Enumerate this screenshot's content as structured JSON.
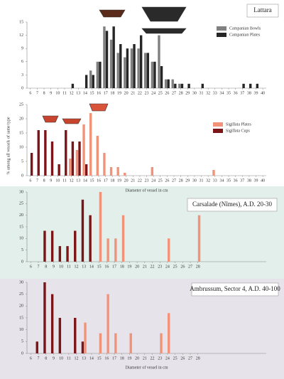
{
  "chart_data": [
    {
      "type": "bar",
      "title": "Lattara",
      "series": [
        {
          "name": "Campanian Bowls",
          "color": "#808080",
          "x": [
            15,
            16,
            17,
            18,
            19,
            20,
            21,
            22,
            23,
            24,
            25,
            26,
            27,
            28
          ],
          "values": [
            4,
            6,
            14,
            11,
            8,
            7,
            9,
            9,
            8,
            6,
            12,
            2,
            2,
            1
          ]
        },
        {
          "name": "Campanian Plates",
          "color": "#262626",
          "x": [
            12,
            14,
            15,
            16,
            17,
            18,
            19,
            20,
            21,
            22,
            23,
            24,
            25,
            26,
            27,
            28,
            29,
            31,
            37,
            38,
            39
          ],
          "values": [
            1,
            3,
            3,
            6,
            13,
            14,
            10,
            9,
            10,
            12,
            8,
            6,
            5,
            2,
            1,
            1,
            1,
            1,
            1,
            1,
            1
          ]
        }
      ],
      "xlim": [
        5.5,
        40.5
      ],
      "xticks": [
        6,
        7,
        8,
        9,
        10,
        11,
        12,
        13,
        14,
        15,
        16,
        17,
        18,
        19,
        20,
        21,
        22,
        23,
        24,
        25,
        26,
        27,
        28,
        29,
        30,
        31,
        32,
        33,
        34,
        35,
        36,
        37,
        38,
        39,
        40
      ],
      "ylim": [
        0,
        15
      ],
      "yticks": [
        0,
        3,
        6,
        9,
        12,
        15
      ]
    },
    {
      "type": "bar",
      "ylabel": "% among all vessels of same type",
      "xlabel": "Diameter of vessel in cm",
      "series": [
        {
          "name": "Sigillata Plates",
          "color": "#f29379",
          "x": [
            12,
            13,
            14,
            15,
            16,
            17,
            18,
            19,
            20,
            24,
            33
          ],
          "values": [
            6,
            9,
            18,
            22,
            14,
            8,
            3,
            3,
            1,
            3,
            2
          ]
        },
        {
          "name": "Sigillata Cups",
          "color": "#7b1518",
          "x": [
            6,
            7,
            8,
            9,
            10,
            11,
            12,
            13,
            14
          ],
          "values": [
            8,
            16,
            16,
            12,
            4,
            16,
            12,
            12,
            4
          ]
        }
      ],
      "xlim": [
        5.5,
        40.5
      ],
      "xticks": [
        6,
        7,
        8,
        9,
        10,
        11,
        12,
        13,
        14,
        15,
        16,
        17,
        18,
        19,
        20,
        21,
        22,
        23,
        24,
        25,
        26,
        27,
        28,
        29,
        30,
        31,
        32,
        33,
        34,
        35,
        36,
        37,
        38,
        39,
        40
      ],
      "ylim": [
        0,
        25
      ],
      "yticks": [
        0,
        5,
        10,
        15,
        20,
        25
      ]
    },
    {
      "type": "bar",
      "title": "Carsalade (Nîmes), A.D. 20-30",
      "series": [
        {
          "color": "#7b1518",
          "x": [
            8,
            9,
            10,
            11,
            12,
            13,
            14
          ],
          "values": [
            13.3,
            13.3,
            6.7,
            6.7,
            13.3,
            26.7,
            20
          ]
        },
        {
          "color": "#f29379",
          "x": [
            15,
            16,
            17,
            18,
            24,
            28
          ],
          "values": [
            30,
            10,
            10,
            20,
            10,
            20
          ]
        }
      ],
      "xlim": [
        5.5,
        37
      ],
      "xticks": [
        6,
        7,
        8,
        9,
        10,
        11,
        12,
        13,
        14,
        15,
        16,
        17,
        18,
        19,
        20,
        21,
        22,
        23,
        24,
        25,
        26,
        27,
        28
      ],
      "ylim": [
        0,
        30
      ],
      "yticks": [
        0,
        5,
        10,
        15,
        20,
        25,
        30
      ]
    },
    {
      "type": "bar",
      "title": "Ambrussum, Sector 4, A.D. 40-100",
      "xlabel": "Diameter of vessel in cm",
      "series": [
        {
          "color": "#7b1518",
          "x": [
            7,
            8,
            9,
            10,
            12,
            13
          ],
          "values": [
            5,
            30,
            25,
            15,
            15,
            5
          ]
        },
        {
          "color": "#f29379",
          "x": [
            13,
            15,
            16,
            17,
            19,
            23,
            24
          ],
          "values": [
            13,
            8.5,
            25,
            8.5,
            8.5,
            8.5,
            17
          ]
        }
      ],
      "xlim": [
        5.5,
        37
      ],
      "xticks": [
        6,
        7,
        8,
        9,
        10,
        11,
        12,
        13,
        14,
        15,
        16,
        17,
        18,
        19,
        20,
        21,
        22,
        23,
        24,
        25,
        26,
        27,
        28
      ],
      "ylim": [
        0,
        30
      ],
      "yticks": [
        0,
        5,
        10,
        15,
        20,
        25,
        30
      ]
    }
  ]
}
